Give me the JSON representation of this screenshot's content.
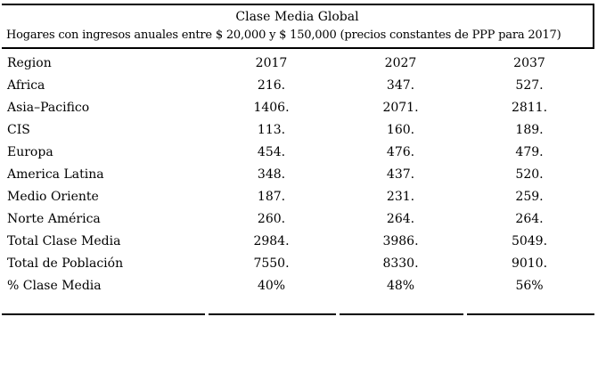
{
  "chart_data": {
    "type": "table",
    "title": "Clase Media Global",
    "subtitle": "Hogares con ingresos anuales entre $ 20,000 y $ 150,000 (precios constantes de PPP para 2017)",
    "columns": [
      "Region",
      "2017",
      "2027",
      "2037"
    ],
    "rows": [
      [
        "Africa",
        "216.",
        "347.",
        "527."
      ],
      [
        "Asia–Pacifico",
        "1406.",
        "2071.",
        "2811."
      ],
      [
        "CIS",
        "113.",
        "160.",
        "189."
      ],
      [
        "Europa",
        "454.",
        "476.",
        "479."
      ],
      [
        "America Latina",
        "348.",
        "437.",
        "520."
      ],
      [
        "Medio Oriente",
        "187.",
        "231.",
        "259."
      ],
      [
        "Norte América",
        "260.",
        "264.",
        "264."
      ],
      [
        "Total Clase Media",
        "2984.",
        "3986.",
        "5049."
      ],
      [
        "Total de Población",
        "7550.",
        "8330.",
        "9010."
      ],
      [
        "% Clase Media",
        "40%",
        "48%",
        "56%"
      ]
    ],
    "layout": {
      "grid": "off",
      "column_alignment": [
        "left",
        "center",
        "center",
        "center"
      ],
      "rule_color": "#000000",
      "text_color": "#000000",
      "background_color": "#ffffff"
    }
  }
}
